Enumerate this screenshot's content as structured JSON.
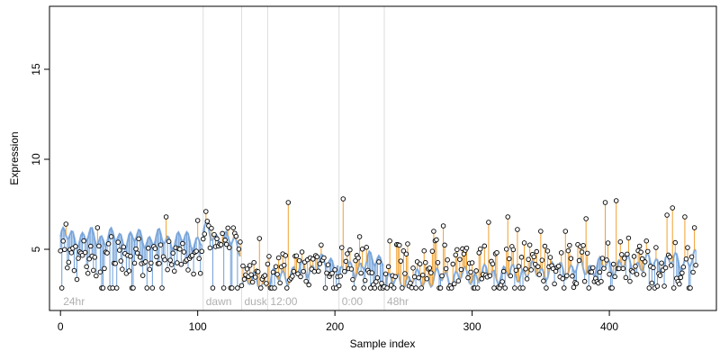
{
  "chart_data": {
    "type": "scatter",
    "title": "",
    "xlabel": "Sample index",
    "ylabel": "Expression",
    "xlim": [
      -8,
      478
    ],
    "ylim": [
      1.6,
      18.5
    ],
    "x_ticks": [
      0,
      100,
      200,
      300,
      400
    ],
    "y_ticks": [
      5,
      10,
      15
    ],
    "grid": false,
    "colors": {
      "points_stroke": "#000000",
      "fitted_line": "#6f9fd8",
      "residual_positive": "#f0a030",
      "residual_negative": "#6f9fd8",
      "region_line": "#dddddd",
      "region_label": "#b0b0b0"
    },
    "regions": [
      {
        "x": 0,
        "label": "24hr"
      },
      {
        "x": 104,
        "label": "dawn"
      },
      {
        "x": 132,
        "label": "dusk"
      },
      {
        "x": 151,
        "label": "12:00"
      },
      {
        "x": 203,
        "label": "0:00"
      },
      {
        "x": 236,
        "label": "48hr"
      }
    ],
    "segments": [
      {
        "start": 0,
        "end": 103,
        "fit_start": 5.7,
        "fit_end": 5.5,
        "level": 4.4,
        "spread": 0.9
      },
      {
        "start": 104,
        "end": 131,
        "fit_start": 6.0,
        "fit_end": 5.2,
        "level": 5.6,
        "spread": 0.7
      },
      {
        "start": 132,
        "end": 150,
        "fit_start": 3.3,
        "fit_end": 3.1,
        "level": 3.6,
        "spread": 0.8
      },
      {
        "start": 151,
        "end": 202,
        "fit_start": 3.3,
        "fit_end": 4.4,
        "level": 3.8,
        "spread": 1.0
      },
      {
        "start": 203,
        "end": 235,
        "fit_start": 3.6,
        "fit_end": 4.6,
        "level": 3.9,
        "spread": 1.1
      },
      {
        "start": 236,
        "end": 463,
        "fit_start": 3.2,
        "fit_end": 4.4,
        "level": 4.0,
        "spread": 1.3
      }
    ],
    "highlights": [
      {
        "x": 4,
        "y": 6.4
      },
      {
        "x": 27,
        "y": 6.2
      },
      {
        "x": 77,
        "y": 6.8
      },
      {
        "x": 100,
        "y": 6.6
      },
      {
        "x": 106,
        "y": 7.1
      },
      {
        "x": 145,
        "y": 5.6
      },
      {
        "x": 166,
        "y": 7.6
      },
      {
        "x": 206,
        "y": 7.8
      },
      {
        "x": 218,
        "y": 5.7
      },
      {
        "x": 272,
        "y": 6.0
      },
      {
        "x": 279,
        "y": 6.3
      },
      {
        "x": 312,
        "y": 6.5
      },
      {
        "x": 326,
        "y": 6.8
      },
      {
        "x": 333,
        "y": 6.1
      },
      {
        "x": 350,
        "y": 6.0
      },
      {
        "x": 368,
        "y": 6.0
      },
      {
        "x": 383,
        "y": 6.7
      },
      {
        "x": 397,
        "y": 7.6
      },
      {
        "x": 405,
        "y": 7.7
      },
      {
        "x": 442,
        "y": 6.9
      },
      {
        "x": 446,
        "y": 7.3
      },
      {
        "x": 455,
        "y": 6.8
      },
      {
        "x": 462,
        "y": 6.2
      }
    ],
    "floor": 2.85,
    "seed": 17
  }
}
